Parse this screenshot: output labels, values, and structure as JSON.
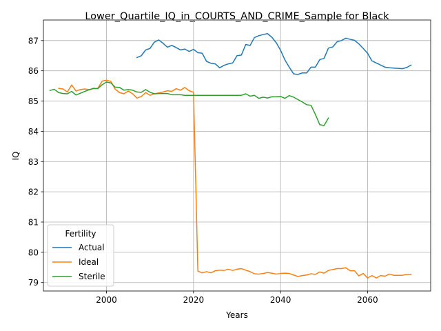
{
  "chart_data": {
    "type": "line",
    "title": "Lower_Quartile_IQ_in_COURTS_AND_CRIME_Sample for Black",
    "xlabel": "Years",
    "ylabel": "IQ",
    "xlim": [
      1985.5,
      2074.5
    ],
    "ylim": [
      78.72,
      87.68
    ],
    "xticks": [
      2000,
      2020,
      2040,
      2060
    ],
    "yticks": [
      79,
      80,
      81,
      82,
      83,
      84,
      85,
      86,
      87
    ],
    "grid": true,
    "legend": {
      "title": "Fertility",
      "placement": "lower-left"
    },
    "series": [
      {
        "name": "Actual",
        "color": "#1f77b4",
        "points": [
          [
            2007,
            86.44
          ],
          [
            2008,
            86.5
          ],
          [
            2009,
            86.69
          ],
          [
            2010,
            86.74
          ],
          [
            2011,
            86.95
          ],
          [
            2012,
            87.02
          ],
          [
            2013,
            86.91
          ],
          [
            2014,
            86.78
          ],
          [
            2015,
            86.84
          ],
          [
            2016,
            86.77
          ],
          [
            2017,
            86.69
          ],
          [
            2018,
            86.72
          ],
          [
            2019,
            86.64
          ],
          [
            2020,
            86.71
          ],
          [
            2021,
            86.6
          ],
          [
            2022,
            86.58
          ],
          [
            2023,
            86.31
          ],
          [
            2024,
            86.25
          ],
          [
            2025,
            86.23
          ],
          [
            2026,
            86.1
          ],
          [
            2027,
            86.18
          ],
          [
            2028,
            86.23
          ],
          [
            2029,
            86.26
          ],
          [
            2030,
            86.5
          ],
          [
            2031,
            86.52
          ],
          [
            2032,
            86.87
          ],
          [
            2033,
            86.84
          ],
          [
            2034,
            87.1
          ],
          [
            2035,
            87.16
          ],
          [
            2036,
            87.2
          ],
          [
            2037,
            87.23
          ],
          [
            2038,
            87.11
          ],
          [
            2039,
            86.93
          ],
          [
            2040,
            86.68
          ],
          [
            2041,
            86.36
          ],
          [
            2042,
            86.12
          ],
          [
            2043,
            85.9
          ],
          [
            2044,
            85.88
          ],
          [
            2045,
            85.93
          ],
          [
            2046,
            85.93
          ],
          [
            2047,
            86.12
          ],
          [
            2048,
            86.12
          ],
          [
            2049,
            86.37
          ],
          [
            2050,
            86.41
          ],
          [
            2051,
            86.75
          ],
          [
            2052,
            86.79
          ],
          [
            2053,
            86.96
          ],
          [
            2054,
            87.0
          ],
          [
            2055,
            87.08
          ],
          [
            2056,
            87.04
          ],
          [
            2057,
            87.01
          ],
          [
            2058,
            86.89
          ],
          [
            2059,
            86.74
          ],
          [
            2060,
            86.58
          ],
          [
            2061,
            86.33
          ],
          [
            2062,
            86.26
          ],
          [
            2063,
            86.19
          ],
          [
            2064,
            86.12
          ],
          [
            2065,
            86.1
          ],
          [
            2066,
            86.09
          ],
          [
            2067,
            86.08
          ],
          [
            2068,
            86.07
          ],
          [
            2069,
            86.11
          ],
          [
            2070,
            86.19
          ]
        ]
      },
      {
        "name": "Ideal",
        "color": "#ff7f0e",
        "points": [
          [
            1989,
            85.42
          ],
          [
            1990,
            85.4
          ],
          [
            1991,
            85.3
          ],
          [
            1992,
            85.53
          ],
          [
            1993,
            85.33
          ],
          [
            1994,
            85.38
          ],
          [
            1995,
            85.4
          ],
          [
            1996,
            85.38
          ],
          [
            1997,
            85.41
          ],
          [
            1998,
            85.42
          ],
          [
            1999,
            85.66
          ],
          [
            2000,
            85.69
          ],
          [
            2001,
            85.65
          ],
          [
            2002,
            85.39
          ],
          [
            2003,
            85.28
          ],
          [
            2004,
            85.24
          ],
          [
            2005,
            85.33
          ],
          [
            2006,
            85.24
          ],
          [
            2007,
            85.1
          ],
          [
            2008,
            85.15
          ],
          [
            2009,
            85.28
          ],
          [
            2010,
            85.19
          ],
          [
            2011,
            85.24
          ],
          [
            2012,
            85.27
          ],
          [
            2013,
            85.3
          ],
          [
            2014,
            85.34
          ],
          [
            2015,
            85.32
          ],
          [
            2016,
            85.41
          ],
          [
            2017,
            85.36
          ],
          [
            2018,
            85.45
          ],
          [
            2019,
            85.34
          ],
          [
            2020,
            85.29
          ],
          [
            2021,
            79.38
          ],
          [
            2022,
            79.32
          ],
          [
            2023,
            79.36
          ],
          [
            2024,
            79.32
          ],
          [
            2025,
            79.39
          ],
          [
            2026,
            79.41
          ],
          [
            2027,
            79.4
          ],
          [
            2028,
            79.44
          ],
          [
            2029,
            79.4
          ],
          [
            2030,
            79.44
          ],
          [
            2031,
            79.46
          ],
          [
            2032,
            79.41
          ],
          [
            2033,
            79.36
          ],
          [
            2034,
            79.29
          ],
          [
            2035,
            79.28
          ],
          [
            2036,
            79.3
          ],
          [
            2037,
            79.33
          ],
          [
            2038,
            79.31
          ],
          [
            2039,
            79.28
          ],
          [
            2040,
            79.3
          ],
          [
            2041,
            79.31
          ],
          [
            2042,
            79.3
          ],
          [
            2043,
            79.25
          ],
          [
            2044,
            79.2
          ],
          [
            2045,
            79.23
          ],
          [
            2046,
            79.25
          ],
          [
            2047,
            79.29
          ],
          [
            2048,
            79.27
          ],
          [
            2049,
            79.35
          ],
          [
            2050,
            79.31
          ],
          [
            2051,
            79.4
          ],
          [
            2052,
            79.43
          ],
          [
            2053,
            79.46
          ],
          [
            2054,
            79.46
          ],
          [
            2055,
            79.49
          ],
          [
            2056,
            79.39
          ],
          [
            2057,
            79.39
          ],
          [
            2058,
            79.22
          ],
          [
            2059,
            79.3
          ],
          [
            2060,
            79.15
          ],
          [
            2061,
            79.23
          ],
          [
            2062,
            79.15
          ],
          [
            2063,
            79.23
          ],
          [
            2064,
            79.21
          ],
          [
            2065,
            79.28
          ],
          [
            2066,
            79.24
          ],
          [
            2067,
            79.24
          ],
          [
            2068,
            79.24
          ],
          [
            2069,
            79.27
          ],
          [
            2070,
            79.27
          ]
        ]
      },
      {
        "name": "Sterile",
        "color": "#2ca02c",
        "points": [
          [
            1987,
            85.35
          ],
          [
            1988,
            85.39
          ],
          [
            1989,
            85.28
          ],
          [
            1990,
            85.25
          ],
          [
            1991,
            85.24
          ],
          [
            1992,
            85.32
          ],
          [
            1993,
            85.2
          ],
          [
            1994,
            85.26
          ],
          [
            1995,
            85.32
          ],
          [
            1996,
            85.37
          ],
          [
            1997,
            85.42
          ],
          [
            1998,
            85.41
          ],
          [
            1999,
            85.54
          ],
          [
            2000,
            85.63
          ],
          [
            2001,
            85.6
          ],
          [
            2002,
            85.46
          ],
          [
            2003,
            85.45
          ],
          [
            2004,
            85.36
          ],
          [
            2005,
            85.38
          ],
          [
            2006,
            85.36
          ],
          [
            2007,
            85.3
          ],
          [
            2008,
            85.29
          ],
          [
            2009,
            85.38
          ],
          [
            2010,
            85.29
          ],
          [
            2011,
            85.24
          ],
          [
            2012,
            85.25
          ],
          [
            2013,
            85.25
          ],
          [
            2014,
            85.25
          ],
          [
            2015,
            85.21
          ],
          [
            2016,
            85.21
          ],
          [
            2017,
            85.21
          ],
          [
            2018,
            85.19
          ],
          [
            2019,
            85.19
          ],
          [
            2020,
            85.19
          ],
          [
            2021,
            85.19
          ],
          [
            2022,
            85.19
          ],
          [
            2023,
            85.19
          ],
          [
            2024,
            85.19
          ],
          [
            2025,
            85.19
          ],
          [
            2026,
            85.19
          ],
          [
            2027,
            85.19
          ],
          [
            2028,
            85.19
          ],
          [
            2029,
            85.19
          ],
          [
            2030,
            85.19
          ],
          [
            2031,
            85.19
          ],
          [
            2032,
            85.24
          ],
          [
            2033,
            85.16
          ],
          [
            2034,
            85.19
          ],
          [
            2035,
            85.09
          ],
          [
            2036,
            85.13
          ],
          [
            2037,
            85.1
          ],
          [
            2038,
            85.14
          ],
          [
            2039,
            85.14
          ],
          [
            2040,
            85.15
          ],
          [
            2041,
            85.09
          ],
          [
            2042,
            85.18
          ],
          [
            2043,
            85.13
          ],
          [
            2044,
            85.05
          ],
          [
            2045,
            84.97
          ],
          [
            2046,
            84.88
          ],
          [
            2047,
            84.86
          ],
          [
            2048,
            84.56
          ],
          [
            2049,
            84.22
          ],
          [
            2050,
            84.19
          ],
          [
            2051,
            84.44
          ]
        ]
      }
    ]
  }
}
